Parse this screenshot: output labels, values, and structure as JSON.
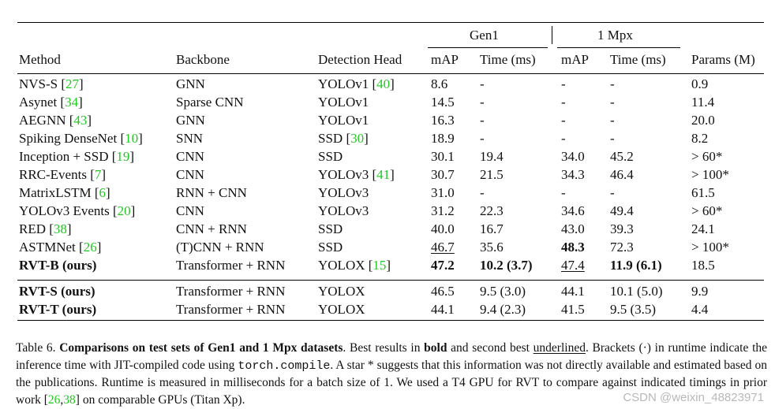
{
  "table": {
    "group_headers": {
      "gen1": "Gen1",
      "mpx": "1 Mpx"
    },
    "headers": [
      "Method",
      "Backbone",
      "Detection Head",
      "mAP",
      "Time (ms)",
      "mAP",
      "Time (ms)",
      "Params (M)"
    ],
    "rows": [
      [
        {
          "t": "NVS-S ",
          "c": "27"
        },
        "GNN",
        {
          "t": "YOLOv1 ",
          "c": "40"
        },
        "8.6",
        "-",
        "-",
        "-",
        "0.9"
      ],
      [
        {
          "t": "Asynet ",
          "c": "34"
        },
        "Sparse CNN",
        "YOLOv1",
        "14.5",
        "-",
        "-",
        "-",
        "11.4"
      ],
      [
        {
          "t": "AEGNN ",
          "c": "43"
        },
        "GNN",
        "YOLOv1",
        "16.3",
        "-",
        "-",
        "-",
        "20.0"
      ],
      [
        {
          "t": "Spiking DenseNet ",
          "c": "10"
        },
        "SNN",
        {
          "t": "SSD ",
          "c": "30"
        },
        "18.9",
        "-",
        "-",
        "-",
        "8.2"
      ],
      [
        {
          "t": "Inception + SSD ",
          "c": "19"
        },
        "CNN",
        "SSD",
        "30.1",
        "19.4",
        "34.0",
        "45.2",
        "> 60*"
      ],
      [
        {
          "t": "RRC-Events ",
          "c": "7"
        },
        "CNN",
        {
          "t": "YOLOv3 ",
          "c": "41"
        },
        "30.7",
        "21.5",
        "34.3",
        "46.4",
        "> 100*"
      ],
      [
        {
          "t": "MatrixLSTM ",
          "c": "6"
        },
        "RNN + CNN",
        "YOLOv3",
        "31.0",
        "-",
        "-",
        "-",
        "61.5"
      ],
      [
        {
          "t": "YOLOv3 Events ",
          "c": "20"
        },
        "CNN",
        "YOLOv3",
        "31.2",
        "22.3",
        "34.6",
        "49.4",
        "> 60*"
      ],
      [
        {
          "t": "RED ",
          "c": "38"
        },
        "CNN + RNN",
        "SSD",
        "40.0",
        "16.7",
        "43.0",
        "39.3",
        "24.1"
      ],
      [
        {
          "t": "ASTMNet ",
          "c": "26"
        },
        "(T)CNN + RNN",
        "SSD",
        {
          "t": "46.7",
          "u": true
        },
        "35.6",
        {
          "t": "48.3",
          "b": true
        },
        "72.3",
        "> 100*"
      ],
      [
        {
          "t": "RVT-B (ours)",
          "b": true
        },
        "Transformer + RNN",
        {
          "t": "YOLOX ",
          "c": "15"
        },
        {
          "t": "47.2",
          "b": true
        },
        {
          "t": "10.2 (3.7)",
          "b": true
        },
        {
          "t": "47.4",
          "u": true
        },
        {
          "t": "11.9 (6.1)",
          "b": true
        },
        "18.5"
      ],
      [
        {
          "t": "RVT-S (ours)",
          "b": true
        },
        "Transformer + RNN",
        "YOLOX",
        "46.5",
        "9.5 (3.0)",
        "44.1",
        "10.1 (5.0)",
        "9.9"
      ],
      [
        {
          "t": "RVT-T (ours)",
          "b": true
        },
        "Transformer + RNN",
        "YOLOX",
        "44.1",
        "9.4 (2.3)",
        "41.5",
        "9.5 (3.5)",
        "4.4"
      ]
    ]
  },
  "caption": {
    "label": "Table 6.",
    "bold_title": "Comparisons on test sets of Gen1 and 1 Mpx datasets",
    "s1": ". Best results in ",
    "bold_word": "bold",
    "s2": " and second best ",
    "underlined_word": "underlined",
    "s3": ". Brackets (·) in runtime indicate the inference time with JIT-compiled code using ",
    "code": "torch.compile",
    "s4": ". A star * suggests that this information was not directly available and estimated based on the publications. Runtime is measured in milliseconds for a batch size of 1. We used a T4 GPU for RVT to compare against indicated timings in prior work [",
    "cite_a": "26",
    "cite_sep": ",",
    "cite_b": "38",
    "s5": "] on comparable GPUs (Titan Xp)."
  },
  "watermark": "CSDN @weixin_48823971",
  "colors": {
    "citation": "#22c722",
    "watermark": "#b8b8b8"
  }
}
